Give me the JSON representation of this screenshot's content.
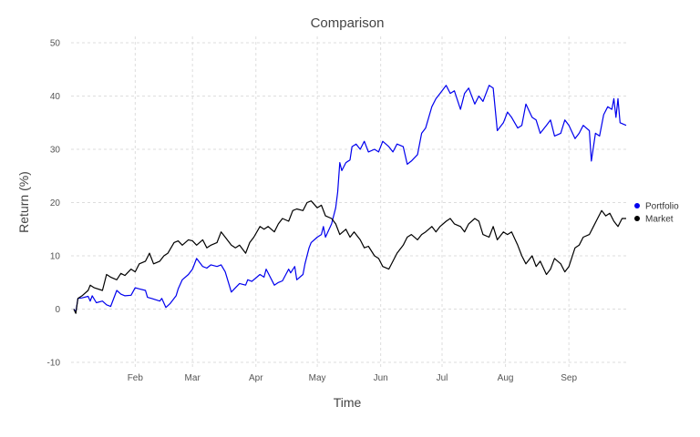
{
  "chart_data": {
    "type": "line",
    "title": "Comparison",
    "xlabel": "Time",
    "ylabel": "Return (%)",
    "x_tick_labels": [
      "Feb",
      "Mar",
      "Apr",
      "May",
      "Jun",
      "Jul",
      "Aug",
      "Sep"
    ],
    "x_tick_dates": [
      "2023-02-01",
      "2023-03-01",
      "2023-04-01",
      "2023-05-01",
      "2023-06-01",
      "2023-07-01",
      "2023-08-01",
      "2023-09-01"
    ],
    "xlim": [
      "2023-01-02",
      "2023-09-29"
    ],
    "ylim": [
      -10,
      50
    ],
    "y_ticks": [
      -10,
      0,
      10,
      20,
      30,
      40,
      50
    ],
    "grid": true,
    "legend_position": "right",
    "series": [
      {
        "name": "Portfolio",
        "color": "#0000ee",
        "points": [
          [
            "2023-01-02",
            0
          ],
          [
            "2023-01-03",
            -0.5
          ],
          [
            "2023-01-04",
            2.0
          ],
          [
            "2023-01-06",
            2.1
          ],
          [
            "2023-01-09",
            2.4
          ],
          [
            "2023-01-10",
            1.5
          ],
          [
            "2023-01-11",
            2.5
          ],
          [
            "2023-01-13",
            1.2
          ],
          [
            "2023-01-16",
            1.5
          ],
          [
            "2023-01-18",
            0.8
          ],
          [
            "2023-01-20",
            0.5
          ],
          [
            "2023-01-23",
            3.5
          ],
          [
            "2023-01-25",
            2.8
          ],
          [
            "2023-01-27",
            2.5
          ],
          [
            "2023-01-30",
            2.6
          ],
          [
            "2023-02-01",
            4.0
          ],
          [
            "2023-02-03",
            3.8
          ],
          [
            "2023-02-06",
            3.5
          ],
          [
            "2023-02-07",
            2.2
          ],
          [
            "2023-02-09",
            2.0
          ],
          [
            "2023-02-13",
            1.5
          ],
          [
            "2023-02-14",
            2.0
          ],
          [
            "2023-02-16",
            0.3
          ],
          [
            "2023-02-18",
            1.0
          ],
          [
            "2023-02-21",
            2.5
          ],
          [
            "2023-02-22",
            3.8
          ],
          [
            "2023-02-24",
            5.5
          ],
          [
            "2023-02-27",
            6.5
          ],
          [
            "2023-03-01",
            7.5
          ],
          [
            "2023-03-03",
            9.5
          ],
          [
            "2023-03-06",
            8.0
          ],
          [
            "2023-03-08",
            7.7
          ],
          [
            "2023-03-10",
            8.3
          ],
          [
            "2023-03-13",
            8.0
          ],
          [
            "2023-03-15",
            8.3
          ],
          [
            "2023-03-17",
            7.0
          ],
          [
            "2023-03-20",
            3.2
          ],
          [
            "2023-03-22",
            4.0
          ],
          [
            "2023-03-24",
            4.8
          ],
          [
            "2023-03-27",
            4.5
          ],
          [
            "2023-03-28",
            5.5
          ],
          [
            "2023-03-30",
            5.2
          ],
          [
            "2023-04-03",
            6.5
          ],
          [
            "2023-04-05",
            6.0
          ],
          [
            "2023-04-06",
            7.5
          ],
          [
            "2023-04-10",
            4.5
          ],
          [
            "2023-04-12",
            5.0
          ],
          [
            "2023-04-14",
            5.3
          ],
          [
            "2023-04-17",
            7.5
          ],
          [
            "2023-04-18",
            6.8
          ],
          [
            "2023-04-20",
            8.0
          ],
          [
            "2023-04-21",
            5.5
          ],
          [
            "2023-04-24",
            6.5
          ],
          [
            "2023-04-25",
            8.5
          ],
          [
            "2023-04-27",
            11.5
          ],
          [
            "2023-04-28",
            12.5
          ],
          [
            "2023-05-01",
            13.5
          ],
          [
            "2023-05-03",
            14.0
          ],
          [
            "2023-05-04",
            15.5
          ],
          [
            "2023-05-05",
            13.5
          ],
          [
            "2023-05-08",
            16.0
          ],
          [
            "2023-05-10",
            19.0
          ],
          [
            "2023-05-11",
            22.0
          ],
          [
            "2023-05-12",
            27.5
          ],
          [
            "2023-05-13",
            26.0
          ],
          [
            "2023-05-15",
            27.5
          ],
          [
            "2023-05-17",
            28.0
          ],
          [
            "2023-05-18",
            30.5
          ],
          [
            "2023-05-20",
            31.0
          ],
          [
            "2023-05-22",
            30.0
          ],
          [
            "2023-05-24",
            31.5
          ],
          [
            "2023-05-26",
            29.5
          ],
          [
            "2023-05-29",
            30.0
          ],
          [
            "2023-05-31",
            29.5
          ],
          [
            "2023-06-02",
            31.5
          ],
          [
            "2023-06-05",
            30.5
          ],
          [
            "2023-06-07",
            29.5
          ],
          [
            "2023-06-09",
            31.0
          ],
          [
            "2023-06-12",
            30.5
          ],
          [
            "2023-06-14",
            27.2
          ],
          [
            "2023-06-16",
            27.8
          ],
          [
            "2023-06-19",
            29.0
          ],
          [
            "2023-06-21",
            33.0
          ],
          [
            "2023-06-23",
            34.0
          ],
          [
            "2023-06-26",
            38.0
          ],
          [
            "2023-06-28",
            39.5
          ],
          [
            "2023-06-30",
            40.5
          ],
          [
            "2023-07-03",
            42.0
          ],
          [
            "2023-07-05",
            40.5
          ],
          [
            "2023-07-07",
            41.0
          ],
          [
            "2023-07-10",
            37.5
          ],
          [
            "2023-07-12",
            40.5
          ],
          [
            "2023-07-14",
            41.5
          ],
          [
            "2023-07-17",
            38.5
          ],
          [
            "2023-07-19",
            40.0
          ],
          [
            "2023-07-21",
            39.0
          ],
          [
            "2023-07-24",
            42.0
          ],
          [
            "2023-07-26",
            41.5
          ],
          [
            "2023-07-28",
            33.5
          ],
          [
            "2023-07-31",
            35.0
          ],
          [
            "2023-08-02",
            37.0
          ],
          [
            "2023-08-04",
            36.0
          ],
          [
            "2023-08-07",
            34.0
          ],
          [
            "2023-08-09",
            34.5
          ],
          [
            "2023-08-11",
            38.5
          ],
          [
            "2023-08-14",
            36.0
          ],
          [
            "2023-08-16",
            35.5
          ],
          [
            "2023-08-18",
            33.0
          ],
          [
            "2023-08-21",
            34.5
          ],
          [
            "2023-08-23",
            35.5
          ],
          [
            "2023-08-25",
            32.5
          ],
          [
            "2023-08-28",
            33.0
          ],
          [
            "2023-08-30",
            35.5
          ],
          [
            "2023-09-01",
            34.5
          ],
          [
            "2023-09-04",
            32.0
          ],
          [
            "2023-09-06",
            33.0
          ],
          [
            "2023-09-08",
            34.5
          ],
          [
            "2023-09-11",
            33.5
          ],
          [
            "2023-09-12",
            27.8
          ],
          [
            "2023-09-14",
            33.0
          ],
          [
            "2023-09-16",
            32.5
          ],
          [
            "2023-09-18",
            36.5
          ],
          [
            "2023-09-20",
            38.0
          ],
          [
            "2023-09-22",
            37.5
          ],
          [
            "2023-09-23",
            39.5
          ],
          [
            "2023-09-24",
            36.0
          ],
          [
            "2023-09-25",
            39.5
          ],
          [
            "2023-09-26",
            35.0
          ],
          [
            "2023-09-29",
            34.5
          ]
        ]
      },
      {
        "name": "Market",
        "color": "#000000",
        "points": [
          [
            "2023-01-02",
            0
          ],
          [
            "2023-01-03",
            -0.8
          ],
          [
            "2023-01-04",
            2.0
          ],
          [
            "2023-01-06",
            2.5
          ],
          [
            "2023-01-09",
            3.5
          ],
          [
            "2023-01-10",
            4.5
          ],
          [
            "2023-01-12",
            4.0
          ],
          [
            "2023-01-16",
            3.5
          ],
          [
            "2023-01-18",
            6.5
          ],
          [
            "2023-01-20",
            6.0
          ],
          [
            "2023-01-23",
            5.5
          ],
          [
            "2023-01-25",
            6.7
          ],
          [
            "2023-01-27",
            6.3
          ],
          [
            "2023-01-30",
            7.5
          ],
          [
            "2023-02-01",
            7.0
          ],
          [
            "2023-02-03",
            8.5
          ],
          [
            "2023-02-06",
            9.0
          ],
          [
            "2023-02-08",
            10.5
          ],
          [
            "2023-02-10",
            8.5
          ],
          [
            "2023-02-13",
            9.0
          ],
          [
            "2023-02-15",
            10.0
          ],
          [
            "2023-02-17",
            10.5
          ],
          [
            "2023-02-20",
            12.5
          ],
          [
            "2023-02-22",
            12.8
          ],
          [
            "2023-02-24",
            12.0
          ],
          [
            "2023-02-27",
            13.0
          ],
          [
            "2023-03-01",
            12.8
          ],
          [
            "2023-03-03",
            12.0
          ],
          [
            "2023-03-06",
            13.0
          ],
          [
            "2023-03-08",
            11.5
          ],
          [
            "2023-03-10",
            12.0
          ],
          [
            "2023-03-13",
            12.5
          ],
          [
            "2023-03-15",
            14.5
          ],
          [
            "2023-03-17",
            13.5
          ],
          [
            "2023-03-20",
            12.0
          ],
          [
            "2023-03-22",
            11.5
          ],
          [
            "2023-03-24",
            12.0
          ],
          [
            "2023-03-27",
            10.5
          ],
          [
            "2023-03-29",
            12.5
          ],
          [
            "2023-03-31",
            13.5
          ],
          [
            "2023-04-03",
            15.5
          ],
          [
            "2023-04-05",
            15.0
          ],
          [
            "2023-04-07",
            15.5
          ],
          [
            "2023-04-10",
            14.5
          ],
          [
            "2023-04-12",
            16.0
          ],
          [
            "2023-04-14",
            17.0
          ],
          [
            "2023-04-17",
            16.5
          ],
          [
            "2023-04-19",
            18.5
          ],
          [
            "2023-04-21",
            18.8
          ],
          [
            "2023-04-24",
            18.5
          ],
          [
            "2023-04-26",
            20.0
          ],
          [
            "2023-04-28",
            20.3
          ],
          [
            "2023-05-01",
            19.0
          ],
          [
            "2023-05-03",
            19.5
          ],
          [
            "2023-05-05",
            17.5
          ],
          [
            "2023-05-08",
            17.0
          ],
          [
            "2023-05-10",
            16.0
          ],
          [
            "2023-05-12",
            14.0
          ],
          [
            "2023-05-15",
            15.0
          ],
          [
            "2023-05-17",
            13.5
          ],
          [
            "2023-05-19",
            14.5
          ],
          [
            "2023-05-22",
            13.0
          ],
          [
            "2023-05-24",
            11.5
          ],
          [
            "2023-05-26",
            11.8
          ],
          [
            "2023-05-29",
            10.0
          ],
          [
            "2023-05-31",
            9.5
          ],
          [
            "2023-06-02",
            8.0
          ],
          [
            "2023-06-05",
            7.5
          ],
          [
            "2023-06-07",
            9.0
          ],
          [
            "2023-06-09",
            10.5
          ],
          [
            "2023-06-12",
            12.0
          ],
          [
            "2023-06-14",
            13.5
          ],
          [
            "2023-06-16",
            14.0
          ],
          [
            "2023-06-19",
            13.0
          ],
          [
            "2023-06-21",
            14.0
          ],
          [
            "2023-06-23",
            14.5
          ],
          [
            "2023-06-26",
            15.5
          ],
          [
            "2023-06-28",
            14.5
          ],
          [
            "2023-06-30",
            15.5
          ],
          [
            "2023-07-03",
            16.5
          ],
          [
            "2023-07-05",
            17.0
          ],
          [
            "2023-07-07",
            16.0
          ],
          [
            "2023-07-10",
            15.5
          ],
          [
            "2023-07-12",
            14.5
          ],
          [
            "2023-07-14",
            16.0
          ],
          [
            "2023-07-17",
            17.0
          ],
          [
            "2023-07-19",
            16.5
          ],
          [
            "2023-07-21",
            14.0
          ],
          [
            "2023-07-24",
            13.5
          ],
          [
            "2023-07-26",
            15.5
          ],
          [
            "2023-07-28",
            13.0
          ],
          [
            "2023-07-31",
            14.5
          ],
          [
            "2023-08-02",
            14.0
          ],
          [
            "2023-08-04",
            14.5
          ],
          [
            "2023-08-07",
            12.0
          ],
          [
            "2023-08-09",
            10.0
          ],
          [
            "2023-08-11",
            8.5
          ],
          [
            "2023-08-14",
            10.0
          ],
          [
            "2023-08-16",
            8.0
          ],
          [
            "2023-08-18",
            9.0
          ],
          [
            "2023-08-21",
            6.5
          ],
          [
            "2023-08-23",
            7.5
          ],
          [
            "2023-08-25",
            9.5
          ],
          [
            "2023-08-28",
            8.5
          ],
          [
            "2023-08-30",
            7.0
          ],
          [
            "2023-09-01",
            8.0
          ],
          [
            "2023-09-04",
            11.5
          ],
          [
            "2023-09-06",
            12.0
          ],
          [
            "2023-09-08",
            13.5
          ],
          [
            "2023-09-11",
            14.0
          ],
          [
            "2023-09-13",
            15.5
          ],
          [
            "2023-09-15",
            17.0
          ],
          [
            "2023-09-17",
            18.5
          ],
          [
            "2023-09-19",
            17.5
          ],
          [
            "2023-09-21",
            18.0
          ],
          [
            "2023-09-23",
            16.5
          ],
          [
            "2023-09-25",
            15.5
          ],
          [
            "2023-09-27",
            17.0
          ],
          [
            "2023-09-29",
            17.0
          ]
        ]
      }
    ]
  }
}
